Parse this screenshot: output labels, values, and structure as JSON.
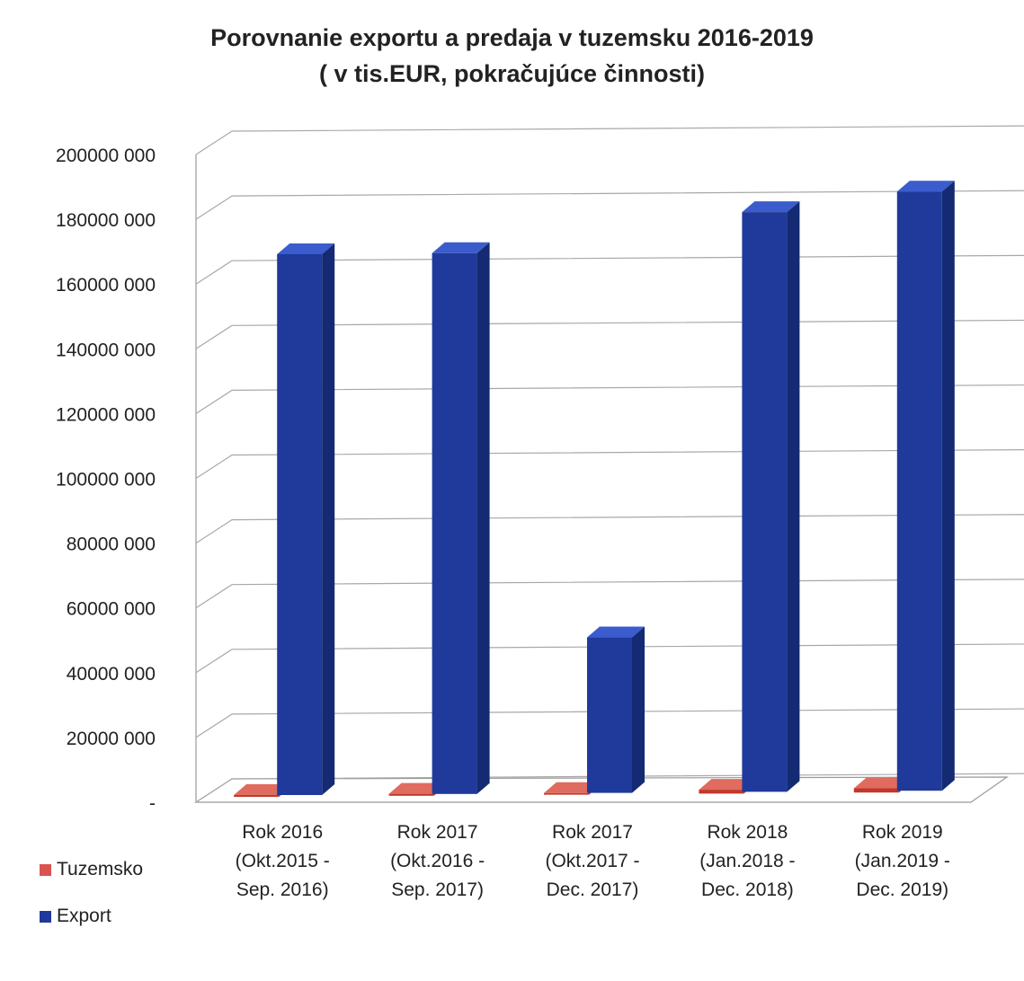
{
  "chart_data": {
    "type": "bar",
    "title": "Porovnanie exportu a predaja v tuzemsku 2016-2019",
    "subtitle": "( v tis.EUR, pokračujúce činnosti)",
    "categories": [
      [
        "Rok 2016",
        "(Okt.2015  -",
        "Sep. 2016)"
      ],
      [
        "Rok 2017",
        "(Okt.2016  -",
        "Sep. 2017)"
      ],
      [
        "Rok 2017",
        "(Okt.2017  -",
        "Dec. 2017)"
      ],
      [
        "Rok 2018",
        "(Jan.2018  -",
        "Dec. 2018)"
      ],
      [
        "Rok 2019",
        "(Jan.2019  -",
        "Dec. 2019)"
      ]
    ],
    "series": [
      {
        "name": "Tuzemsko",
        "color": "#c0392b",
        "values": [
          600000,
          600000,
          500000,
          1200000,
          1300000
        ]
      },
      {
        "name": "Export",
        "color": "#1f3a9a",
        "values": [
          167000000,
          167000000,
          48000000,
          179000000,
          185000000
        ]
      }
    ],
    "ylim": [
      0,
      200000000
    ],
    "yticks": [
      "-",
      "20000 000",
      "40000 000",
      "60000 000",
      "80000 000",
      "100000 000",
      "120000 000",
      "140000 000",
      "160000 000",
      "180000 000",
      "200000 000"
    ],
    "grid": true,
    "legend": "bottom-left",
    "three_d": true
  }
}
